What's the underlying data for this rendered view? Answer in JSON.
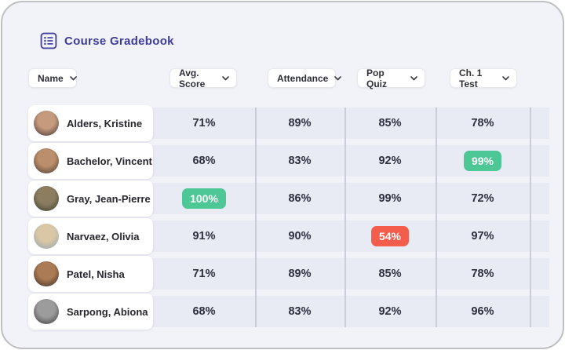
{
  "app": {
    "title": "Course Gradebook"
  },
  "colors": {
    "indigo": "#3e3c9a",
    "card_bg": "#f2f3f8",
    "row_band": "#e8ebf3",
    "divider_line": "#c9cdd7",
    "frame_border": "#bfbfc3",
    "badge_green": "#4cc795",
    "badge_red": "#f45d4c"
  },
  "header_icon": "list-checklist-icon",
  "filters": [
    {
      "label": "Name"
    },
    {
      "label": "Avg. Score"
    },
    {
      "label": "Attendance"
    },
    {
      "label": "Pop Quiz"
    },
    {
      "label": "Ch. 1 Test"
    }
  ],
  "table": {
    "columns": [
      "Avg. Score",
      "Attendance",
      "Pop Quiz",
      "Ch. 1 Test"
    ],
    "rows": [
      {
        "name": "Alders, Kristine",
        "avatar": {
          "inner": "#c59a7d",
          "outer": "#3f3136",
          "accent": "#a0ululated"
        },
        "scores": [
          {
            "text": "71%",
            "badge": null
          },
          {
            "text": "89%",
            "badge": null
          },
          {
            "text": "85%",
            "badge": null
          },
          {
            "text": "78%",
            "badge": null
          }
        ]
      },
      {
        "name": "Bachelor, Vincent",
        "avatar": {
          "inner": "#bb8e6c",
          "outer": "#463730"
        },
        "scores": [
          {
            "text": "68%",
            "badge": null
          },
          {
            "text": "83%",
            "badge": null
          },
          {
            "text": "92%",
            "badge": null
          },
          {
            "text": "99%",
            "badge": "green"
          }
        ]
      },
      {
        "name": "Gray, Jean-Pierre",
        "avatar": {
          "inner": "#8d7d60",
          "outer": "#35402f"
        },
        "scores": [
          {
            "text": "100%",
            "badge": "green"
          },
          {
            "text": "86%",
            "badge": null
          },
          {
            "text": "99%",
            "badge": null
          },
          {
            "text": "72%",
            "badge": null
          }
        ]
      },
      {
        "name": "Narvaez, Olivia",
        "avatar": {
          "inner": "#d9c7a6",
          "outer": "#8fa2b4"
        },
        "scores": [
          {
            "text": "91%",
            "badge": null
          },
          {
            "text": "90%",
            "badge": null
          },
          {
            "text": "54%",
            "badge": "red"
          },
          {
            "text": "97%",
            "badge": null
          }
        ]
      },
      {
        "name": "Patel, Nisha",
        "avatar": {
          "inner": "#ab7b55",
          "outer": "#352a24"
        },
        "scores": [
          {
            "text": "71%",
            "badge": null
          },
          {
            "text": "89%",
            "badge": null
          },
          {
            "text": "85%",
            "badge": null
          },
          {
            "text": "78%",
            "badge": null
          }
        ]
      },
      {
        "name": "Sarpong, Abiona",
        "avatar": {
          "inner": "#9c9c9c",
          "outer": "#3a3a3a"
        },
        "scores": [
          {
            "text": "68%",
            "badge": null
          },
          {
            "text": "83%",
            "badge": null
          },
          {
            "text": "92%",
            "badge": null
          },
          {
            "text": "96%",
            "badge": null
          }
        ]
      }
    ]
  }
}
